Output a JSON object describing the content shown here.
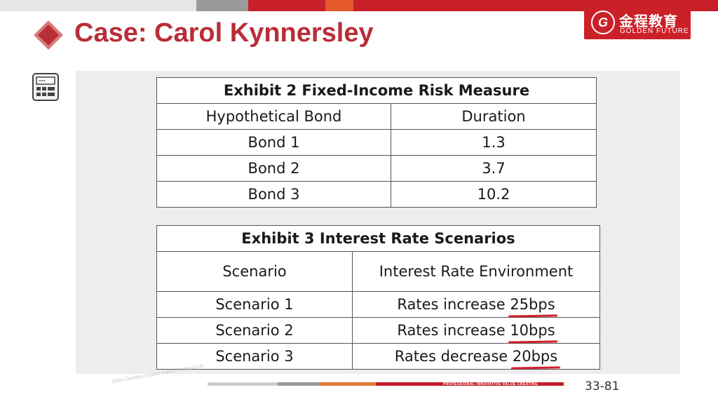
{
  "header": {
    "title": "Case: Carol Kynnersley"
  },
  "logo": {
    "mark": "G",
    "cn": "金程教育",
    "en": "GOLDEN FUTURE"
  },
  "colors": {
    "accent": "#b82e37",
    "logo_bg": "#cc2028",
    "underline": "#d0202a"
  },
  "exhibit2": {
    "title": "Exhibit 2 Fixed-Income Risk Measure",
    "headers": [
      "Hypothetical Bond",
      "Duration"
    ],
    "rows": [
      [
        "Bond 1",
        "1.3"
      ],
      [
        "Bond 2",
        "3.7"
      ],
      [
        "Bond 3",
        "10.2"
      ]
    ]
  },
  "exhibit3": {
    "title": "Exhibit 3 Interest Rate Scenarios",
    "headers": [
      "Scenario",
      "Interest Rate Environment"
    ],
    "rows": [
      {
        "scenario": "Scenario 1",
        "env_prefix": "Rates increase ",
        "env_amount": "25bps"
      },
      {
        "scenario": "Scenario 2",
        "env_prefix": "Rates increase ",
        "env_amount": "10bps"
      },
      {
        "scenario": "Scenario 3",
        "env_prefix": "Rates decrease ",
        "env_amount": "20bps"
      }
    ]
  },
  "footer": {
    "slogan": "PROFESSIONAL·INNOVATIVE·VALUE CREATING",
    "page": "33-81",
    "watermark": "100% Certified Golden Future Professional"
  },
  "icons": [
    "calculator-icon",
    "title-diamond-icon"
  ]
}
